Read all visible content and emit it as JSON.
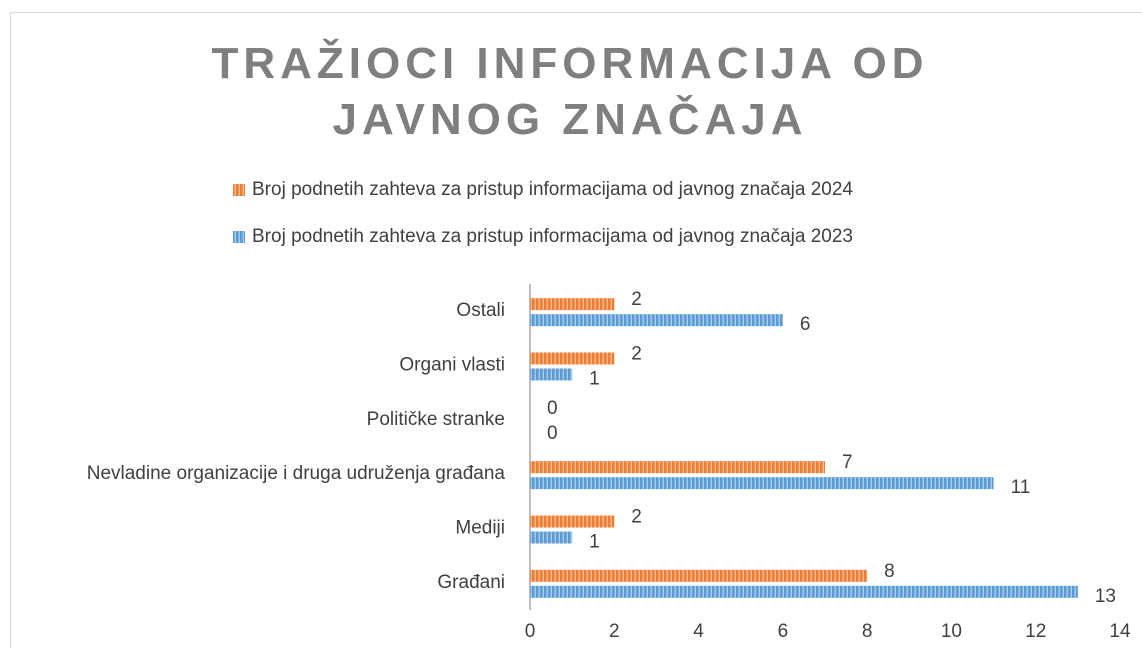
{
  "chart_data": {
    "type": "bar",
    "orientation": "horizontal",
    "title": "TRAŽIOCI INFORMACIJA OD JAVNOG ZNAČAJA",
    "categories": [
      "Građani",
      "Mediji",
      "Nevladine organizacije i druga udruženja građana",
      "Političke stranke",
      "Organi vlasti",
      "Ostali"
    ],
    "series": [
      {
        "name": "Broj podnetih zahteva za pristup informacijama od javnog značaja 2024",
        "color": "#ed7d31",
        "values": [
          8,
          2,
          7,
          0,
          2,
          2
        ]
      },
      {
        "name": "Broj podnetih zahteva za pristup informacijama od javnog značaja 2023",
        "color": "#5b9bd5",
        "values": [
          13,
          1,
          11,
          0,
          1,
          6
        ]
      }
    ],
    "xlim": [
      0,
      14
    ],
    "xticks": [
      0,
      2,
      4,
      6,
      8,
      10,
      12,
      14
    ],
    "grid": false,
    "legend": "top"
  }
}
